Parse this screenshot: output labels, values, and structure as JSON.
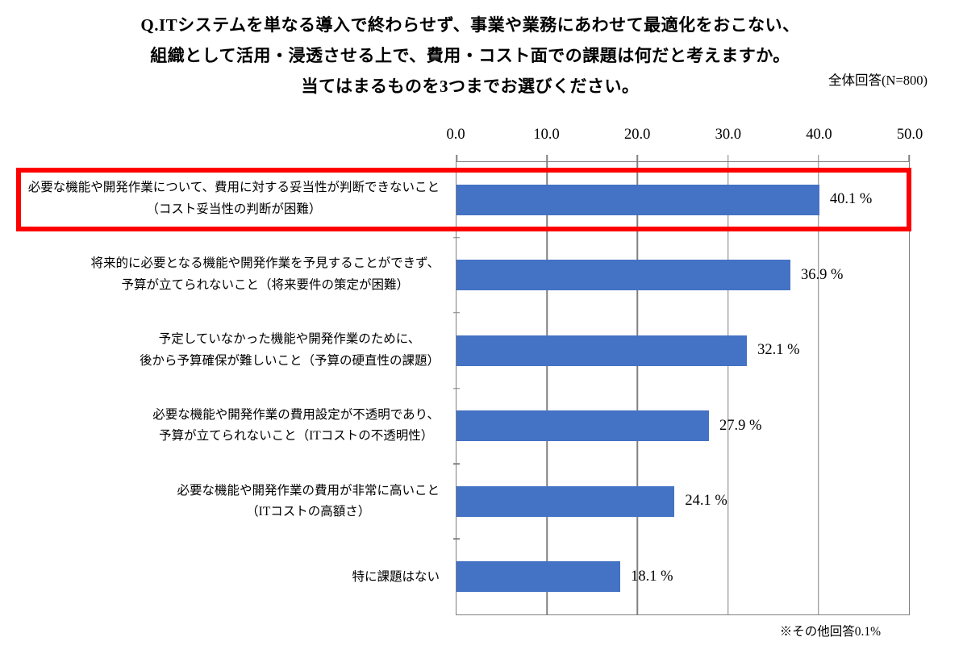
{
  "title": {
    "line1": "Q.ITシステムを単なる導入で終わらせず、事業や業務にあわせて最適化をおこない、",
    "line2": "組織として活用・浸透させる上で、費用・コスト面での課題は何だと考えますか。",
    "line3": "当てはまるものを3つまでお選びください。"
  },
  "sample_note": "全体回答(N=800)",
  "footnote": "※その他回答0.1%",
  "axis": {
    "ticks": [
      "0.0",
      "10.0",
      "20.0",
      "30.0",
      "40.0",
      "50.0"
    ]
  },
  "rows": [
    {
      "lines": [
        "必要な機能や開発作業について、費用に対する妥当性が判断できないこと",
        "（コスト妥当性の判断が困難）"
      ],
      "value_label": "40.1 %",
      "highlighted": true
    },
    {
      "lines": [
        "将来的に必要となる機能や開発作業を予見することができず、",
        "予算が立てられないこと（将来要件の策定が困難）"
      ],
      "value_label": "36.9 %",
      "highlighted": false
    },
    {
      "lines": [
        "予定していなかった機能や開発作業のために、",
        "後から予算確保が難しいこと（予算の硬直性の課題）"
      ],
      "value_label": "32.1 %",
      "highlighted": false
    },
    {
      "lines": [
        "必要な機能や開発作業の費用設定が不透明であり、",
        "予算が立てられないこと（ITコストの不透明性）"
      ],
      "value_label": "27.9 %",
      "highlighted": false
    },
    {
      "lines": [
        "必要な機能や開発作業の費用が非常に高いこと",
        "（ITコストの高額さ）"
      ],
      "value_label": "24.1 %",
      "highlighted": false
    },
    {
      "lines": [
        "特に課題はない"
      ],
      "value_label": "18.1 %",
      "highlighted": false
    }
  ],
  "chart_data": {
    "type": "bar",
    "orientation": "horizontal",
    "title": "Q.ITシステムを単なる導入で終わらせず、事業や業務にあわせて最適化をおこない、組織として活用・浸透させる上で、費用・コスト面での課題は何だと考えますか。当てはまるものを3つまでお選びください。",
    "categories": [
      "必要な機能や開発作業について、費用に対する妥当性が判断できないこと（コスト妥当性の判断が困難）",
      "将来的に必要となる機能や開発作業を予見することができず、予算が立てられないこと（将来要件の策定が困難）",
      "予定していなかった機能や開発作業のために、後から予算確保が難しいこと（予算の硬直性の課題）",
      "必要な機能や開発作業の費用設定が不透明であり、予算が立てられないこと（ITコストの不透明性）",
      "必要な機能や開発作業の費用が非常に高いこと（ITコストの高額さ）",
      "特に課題はない"
    ],
    "values": [
      40.1,
      36.9,
      32.1,
      27.9,
      24.1,
      18.1
    ],
    "unit": "%",
    "xlim": [
      0,
      50
    ],
    "xticks": [
      0.0,
      10.0,
      20.0,
      30.0,
      40.0,
      50.0
    ],
    "grid": true,
    "legend": false,
    "sample_note": "全体回答(N=800)",
    "footnote": "※その他回答0.1%",
    "highlighted_index": 0,
    "bar_color": "#4472C4",
    "highlight_box_color": "#FF0000",
    "grid_color": "#808080"
  }
}
